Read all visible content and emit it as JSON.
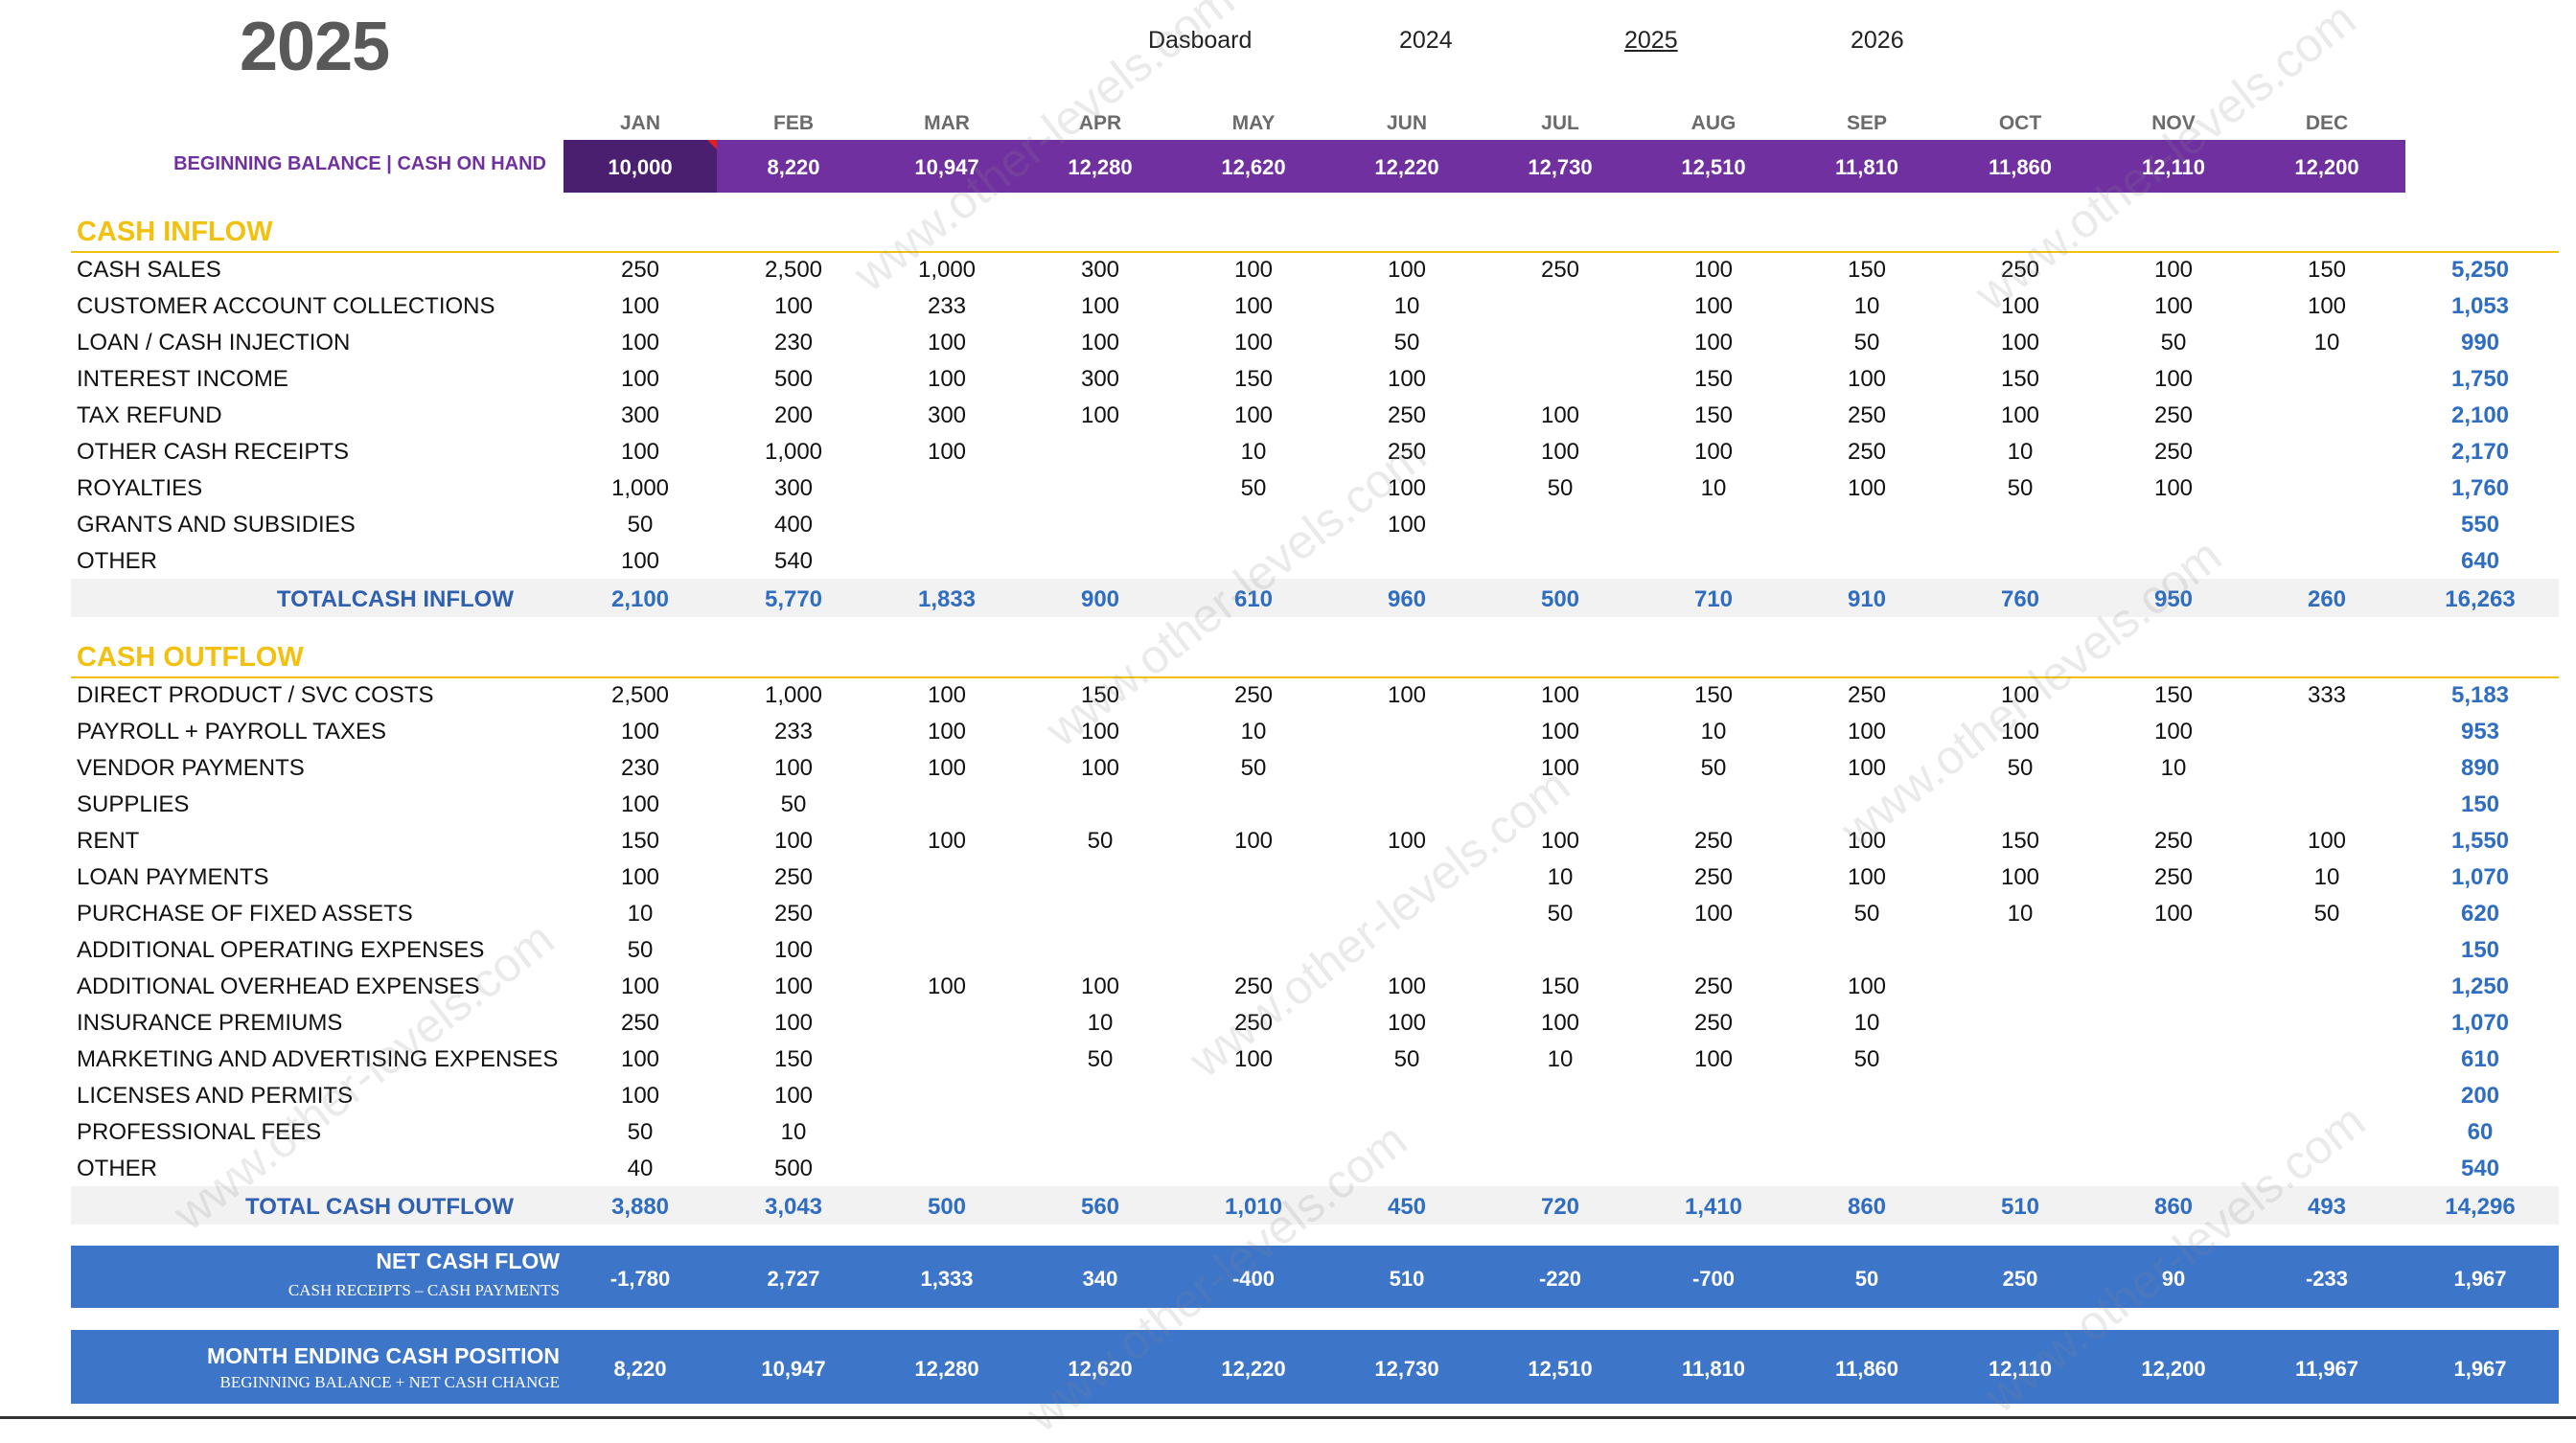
{
  "header": {
    "year_title": "2025",
    "nav": {
      "dashboard": "Dasboard",
      "y2024": "2024",
      "y2025": "2025",
      "y2026": "2026"
    }
  },
  "months": [
    "JAN",
    "FEB",
    "MAR",
    "APR",
    "MAY",
    "JUN",
    "JUL",
    "AUG",
    "SEP",
    "OCT",
    "NOV",
    "DEC"
  ],
  "beginning_balance": {
    "label": "BEGINNING BALANCE | CASH ON HAND",
    "values": [
      "10,000",
      "8,220",
      "10,947",
      "12,280",
      "12,620",
      "12,220",
      "12,730",
      "12,510",
      "11,810",
      "11,860",
      "12,110",
      "12,200"
    ]
  },
  "cash_inflow": {
    "title": "CASH INFLOW",
    "rows": [
      {
        "label": "CASH SALES",
        "values": [
          "250",
          "2,500",
          "1,000",
          "300",
          "100",
          "100",
          "250",
          "100",
          "150",
          "250",
          "100",
          "150"
        ],
        "total": "5,250"
      },
      {
        "label": "CUSTOMER ACCOUNT COLLECTIONS",
        "values": [
          "100",
          "100",
          "233",
          "100",
          "100",
          "10",
          "",
          "100",
          "10",
          "100",
          "100",
          "100"
        ],
        "total": "1,053"
      },
      {
        "label": "LOAN / CASH INJECTION",
        "values": [
          "100",
          "230",
          "100",
          "100",
          "100",
          "50",
          "",
          "100",
          "50",
          "100",
          "50",
          "10"
        ],
        "total": "990"
      },
      {
        "label": "INTEREST INCOME",
        "values": [
          "100",
          "500",
          "100",
          "300",
          "150",
          "100",
          "",
          "150",
          "100",
          "150",
          "100",
          ""
        ],
        "total": "1,750"
      },
      {
        "label": "TAX REFUND",
        "values": [
          "300",
          "200",
          "300",
          "100",
          "100",
          "250",
          "100",
          "150",
          "250",
          "100",
          "250",
          ""
        ],
        "total": "2,100"
      },
      {
        "label": "OTHER CASH RECEIPTS",
        "values": [
          "100",
          "1,000",
          "100",
          "",
          "10",
          "250",
          "100",
          "100",
          "250",
          "10",
          "250",
          ""
        ],
        "total": "2,170"
      },
      {
        "label": "ROYALTIES",
        "values": [
          "1,000",
          "300",
          "",
          "",
          "50",
          "100",
          "50",
          "10",
          "100",
          "50",
          "100",
          ""
        ],
        "total": "1,760"
      },
      {
        "label": "GRANTS AND SUBSIDIES",
        "values": [
          "50",
          "400",
          "",
          "",
          "",
          "100",
          "",
          "",
          "",
          "",
          "",
          ""
        ],
        "total": "550"
      },
      {
        "label": "OTHER",
        "values": [
          "100",
          "540",
          "",
          "",
          "",
          "",
          "",
          "",
          "",
          "",
          "",
          ""
        ],
        "total": "640"
      }
    ],
    "total": {
      "label": "TOTALCASH INFLOW",
      "values": [
        "2,100",
        "5,770",
        "1,833",
        "900",
        "610",
        "960",
        "500",
        "710",
        "910",
        "760",
        "950",
        "260"
      ],
      "total": "16,263"
    }
  },
  "cash_outflow": {
    "title": "CASH OUTFLOW",
    "rows": [
      {
        "label": "DIRECT PRODUCT / SVC COSTS",
        "values": [
          "2,500",
          "1,000",
          "100",
          "150",
          "250",
          "100",
          "100",
          "150",
          "250",
          "100",
          "150",
          "333"
        ],
        "total": "5,183"
      },
      {
        "label": "PAYROLL + PAYROLL TAXES",
        "values": [
          "100",
          "233",
          "100",
          "100",
          "10",
          "",
          "100",
          "10",
          "100",
          "100",
          "100",
          ""
        ],
        "total": "953"
      },
      {
        "label": "VENDOR PAYMENTS",
        "values": [
          "230",
          "100",
          "100",
          "100",
          "50",
          "",
          "100",
          "50",
          "100",
          "50",
          "10",
          ""
        ],
        "total": "890"
      },
      {
        "label": "SUPPLIES",
        "values": [
          "100",
          "50",
          "",
          "",
          "",
          "",
          "",
          "",
          "",
          "",
          "",
          ""
        ],
        "total": "150"
      },
      {
        "label": "RENT",
        "values": [
          "150",
          "100",
          "100",
          "50",
          "100",
          "100",
          "100",
          "250",
          "100",
          "150",
          "250",
          "100"
        ],
        "total": "1,550"
      },
      {
        "label": "LOAN PAYMENTS",
        "values": [
          "100",
          "250",
          "",
          "",
          "",
          "",
          "10",
          "250",
          "100",
          "100",
          "250",
          "10"
        ],
        "total": "1,070"
      },
      {
        "label": "PURCHASE OF FIXED ASSETS",
        "values": [
          "10",
          "250",
          "",
          "",
          "",
          "",
          "50",
          "100",
          "50",
          "10",
          "100",
          "50"
        ],
        "total": "620"
      },
      {
        "label": "ADDITIONAL OPERATING EXPENSES",
        "values": [
          "50",
          "100",
          "",
          "",
          "",
          "",
          "",
          "",
          "",
          "",
          "",
          ""
        ],
        "total": "150"
      },
      {
        "label": "ADDITIONAL OVERHEAD EXPENSES",
        "values": [
          "100",
          "100",
          "100",
          "100",
          "250",
          "100",
          "150",
          "250",
          "100",
          "",
          "",
          ""
        ],
        "total": "1,250"
      },
      {
        "label": "INSURANCE PREMIUMS",
        "values": [
          "250",
          "100",
          "",
          "10",
          "250",
          "100",
          "100",
          "250",
          "10",
          "",
          "",
          ""
        ],
        "total": "1,070"
      },
      {
        "label": "MARKETING AND ADVERTISING EXPENSES",
        "values": [
          "100",
          "150",
          "",
          "50",
          "100",
          "50",
          "10",
          "100",
          "50",
          "",
          "",
          ""
        ],
        "total": "610"
      },
      {
        "label": "LICENSES AND PERMITS",
        "values": [
          "100",
          "100",
          "",
          "",
          "",
          "",
          "",
          "",
          "",
          "",
          "",
          ""
        ],
        "total": "200"
      },
      {
        "label": "PROFESSIONAL FEES",
        "values": [
          "50",
          "10",
          "",
          "",
          "",
          "",
          "",
          "",
          "",
          "",
          "",
          ""
        ],
        "total": "60"
      },
      {
        "label": "OTHER",
        "values": [
          "40",
          "500",
          "",
          "",
          "",
          "",
          "",
          "",
          "",
          "",
          "",
          ""
        ],
        "total": "540"
      }
    ],
    "total": {
      "label": "TOTAL CASH OUTFLOW",
      "values": [
        "3,880",
        "3,043",
        "500",
        "560",
        "1,010",
        "450",
        "720",
        "1,410",
        "860",
        "510",
        "860",
        "493"
      ],
      "total": "14,296"
    }
  },
  "net_cash_flow": {
    "label": "NET CASH FLOW",
    "sublabel": "CASH RECEIPTS – CASH PAYMENTS",
    "values": [
      "-1,780",
      "2,727",
      "1,333",
      "340",
      "-400",
      "510",
      "-220",
      "-700",
      "50",
      "250",
      "90",
      "-233"
    ],
    "total": "1,967"
  },
  "month_ending": {
    "label": "MONTH ENDING CASH POSITION",
    "sublabel": "BEGINNING BALANCE + NET CASH CHANGE",
    "values": [
      "8,220",
      "10,947",
      "12,280",
      "12,620",
      "12,220",
      "12,730",
      "12,510",
      "11,810",
      "11,860",
      "12,110",
      "12,200",
      "11,967"
    ],
    "total": "1,967"
  },
  "watermark": "www.other-levels.com",
  "colors": {
    "purple": "#7030a0",
    "dark_purple": "#4b1f6f",
    "gold": "#f2c00f",
    "blue_band": "#3d75c9",
    "total_blue": "#2f6dc2"
  }
}
